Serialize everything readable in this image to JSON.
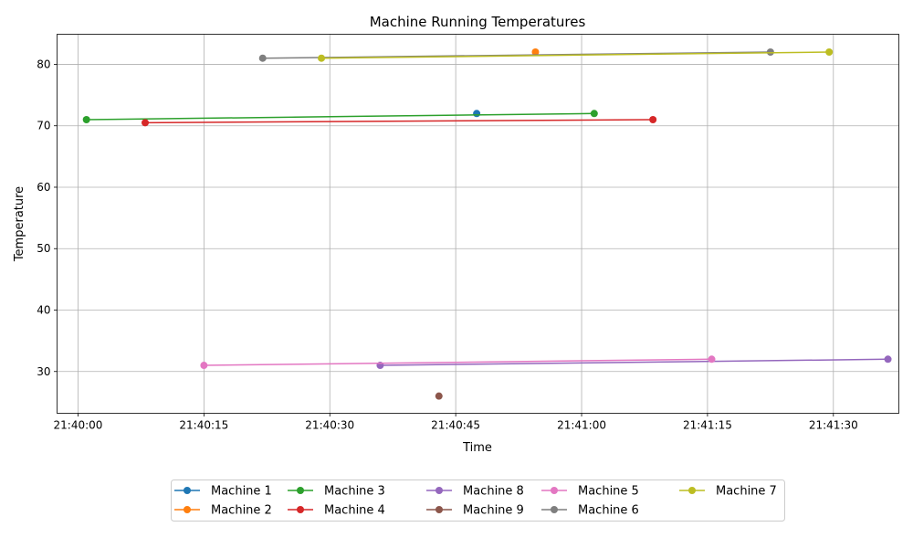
{
  "chart_data": {
    "type": "line",
    "title": "Machine Running Temperatures",
    "xlabel": "Time",
    "ylabel": "Temperature",
    "xlim": [
      "21:39:57.5",
      "21:41:37.8"
    ],
    "ylim": [
      23.2,
      84.9
    ],
    "x_ticks": [
      "21:40:00",
      "21:40:15",
      "21:40:30",
      "21:40:45",
      "21:41:00",
      "21:41:15",
      "21:41:30"
    ],
    "y_ticks": [
      30,
      40,
      50,
      60,
      70,
      80
    ],
    "grid": true,
    "legend_position": "bottom-center",
    "legend_columns": 5,
    "series": [
      {
        "name": "Machine 1",
        "color": "#1f77b4",
        "points": [
          [
            "21:40:47.5",
            72
          ]
        ]
      },
      {
        "name": "Machine 2",
        "color": "#ff7f0e",
        "points": [
          [
            "21:40:54.5",
            82
          ]
        ]
      },
      {
        "name": "Machine 3",
        "color": "#2ca02c",
        "points": [
          [
            "21:40:01.0",
            71
          ],
          [
            "21:41:01.5",
            72
          ]
        ]
      },
      {
        "name": "Machine 4",
        "color": "#d62728",
        "points": [
          [
            "21:40:08.0",
            70.5
          ],
          [
            "21:41:08.5",
            71
          ]
        ]
      },
      {
        "name": "Machine 8",
        "color": "#9467bd",
        "points": [
          [
            "21:40:36.0",
            31
          ],
          [
            "21:41:36.5",
            32
          ]
        ]
      },
      {
        "name": "Machine 9",
        "color": "#8c564b",
        "points": [
          [
            "21:40:43.0",
            26
          ]
        ]
      },
      {
        "name": "Machine 5",
        "color": "#e377c2",
        "points": [
          [
            "21:40:15.0",
            31
          ],
          [
            "21:41:15.5",
            32
          ]
        ]
      },
      {
        "name": "Machine 6",
        "color": "#7f7f7f",
        "points": [
          [
            "21:40:22.0",
            81
          ],
          [
            "21:41:22.5",
            82
          ]
        ]
      },
      {
        "name": "Machine 7",
        "color": "#bcbd22",
        "points": [
          [
            "21:40:29.0",
            81
          ],
          [
            "21:41:29.5",
            82
          ]
        ]
      }
    ]
  }
}
